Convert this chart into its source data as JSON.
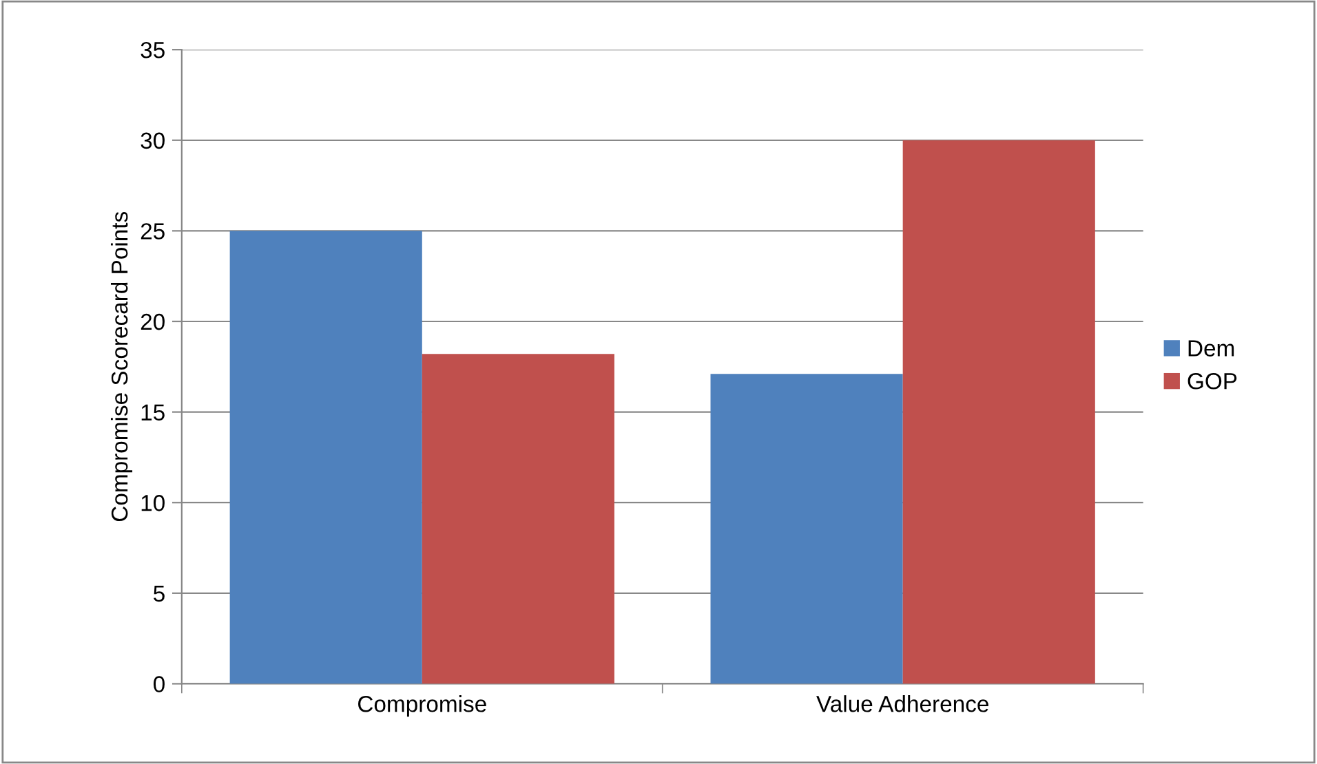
{
  "chart_data": {
    "type": "bar",
    "ylabel": "Compromise Scorecard Points",
    "categories": [
      "Compromise",
      "Value Adherence"
    ],
    "series": [
      {
        "name": "Dem",
        "color": "#4f81bd",
        "values": [
          25,
          17.1
        ]
      },
      {
        "name": "GOP",
        "color": "#c0504d",
        "values": [
          18.2,
          30
        ]
      }
    ],
    "ylim": [
      0,
      35
    ],
    "yticks": [
      0,
      5,
      10,
      15,
      20,
      25,
      30,
      35
    ],
    "grid": "y",
    "legend": "right"
  }
}
